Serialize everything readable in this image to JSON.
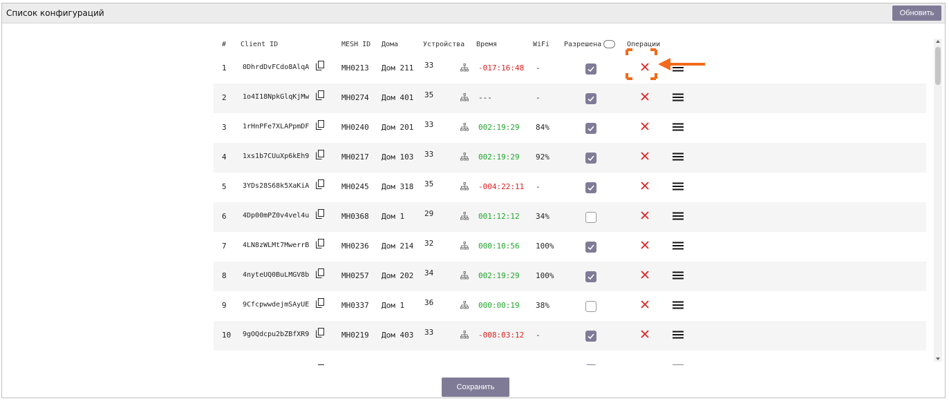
{
  "window": {
    "title": "Список конфигураций",
    "refresh_label": "Обновить",
    "save_label": "Сохранить"
  },
  "table": {
    "headers": {
      "num": "#",
      "client": "Client ID",
      "mesh": "MESH ID",
      "home": "Дома",
      "devices": "Устройства",
      "time": "Время",
      "wifi": "WiFi",
      "allowed": "Разрешена",
      "ops": "Операции"
    },
    "rows": [
      {
        "num": "1",
        "client": "0DhrdDvFCdo8AlqA",
        "mesh": "MH0213",
        "home": "Дом 211",
        "devices": "33",
        "time": "-017:16:48",
        "time_color": "red",
        "wifi": "-",
        "allowed": true
      },
      {
        "num": "2",
        "client": "1o4I18NpkGlqKjMw",
        "mesh": "MH0274",
        "home": "Дом 401",
        "devices": "35",
        "time": "---",
        "time_color": "normal",
        "wifi": "-",
        "allowed": true
      },
      {
        "num": "3",
        "client": "1rHnPFe7XLAPpmDF",
        "mesh": "MH0240",
        "home": "Дом 201",
        "devices": "33",
        "time": "002:19:29",
        "time_color": "green",
        "wifi": "84%",
        "allowed": true
      },
      {
        "num": "4",
        "client": "1xs1b7CUuXp6kEh9",
        "mesh": "MH0217",
        "home": "Дом 103",
        "devices": "33",
        "time": "002:19:29",
        "time_color": "green",
        "wifi": "92%",
        "allowed": true
      },
      {
        "num": "5",
        "client": "3YDs28S68k5XaKiA",
        "mesh": "MH0245",
        "home": "Дом 318",
        "devices": "35",
        "time": "-004:22:11",
        "time_color": "red",
        "wifi": "-",
        "allowed": true
      },
      {
        "num": "6",
        "client": "4Dp00mPZ0v4vel4u",
        "mesh": "MH0368",
        "home": "Дом 1",
        "devices": "29",
        "time": "001:12:12",
        "time_color": "green",
        "wifi": "34%",
        "allowed": false
      },
      {
        "num": "7",
        "client": "4LN8zWLMt7MwerrB",
        "mesh": "MH0236",
        "home": "Дом 214",
        "devices": "32",
        "time": "000:10:56",
        "time_color": "green",
        "wifi": "100%",
        "allowed": true
      },
      {
        "num": "8",
        "client": "4nyteUQ0BuLMGV8b",
        "mesh": "MH0257",
        "home": "Дом 202",
        "devices": "34",
        "time": "002:19:29",
        "time_color": "green",
        "wifi": "100%",
        "allowed": true
      },
      {
        "num": "9",
        "client": "9CfcpwwdejmSAyUE",
        "mesh": "MH0337",
        "home": "Дом 1",
        "devices": "36",
        "time": "000:00:19",
        "time_color": "green",
        "wifi": "38%",
        "allowed": false
      },
      {
        "num": "10",
        "client": "9gOQdcpu2bZBfXR9",
        "mesh": "MH0219",
        "home": "Дом 403",
        "devices": "33",
        "time": "-008:03:12",
        "time_color": "red",
        "wifi": "-",
        "allowed": true
      }
    ]
  },
  "icons": {
    "copy": "copy-icon",
    "mesh": "network-icon",
    "delete": "close-icon",
    "menu": "hamburger-menu-icon"
  },
  "colors": {
    "accent": "#7f7b97",
    "danger": "#e02020",
    "ok": "#1fa52a",
    "highlight": "#f26a1b"
  }
}
